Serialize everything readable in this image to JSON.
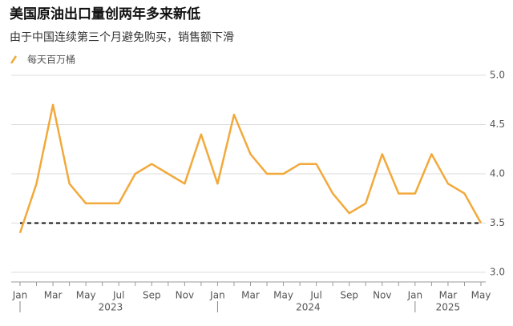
{
  "chart_data": {
    "type": "line",
    "title": "美国原油出口量创两年多来新低",
    "subtitle": "由于中国连续第三个月避免购买，销售额下滑",
    "categories": [
      "Jan",
      null,
      "Mar",
      null,
      "May",
      null,
      "Jul",
      null,
      "Sep",
      null,
      "Nov",
      null,
      "Jan",
      null,
      "Mar",
      null,
      "May",
      null,
      "Jul",
      null,
      "Sep",
      null,
      "Nov",
      null,
      "Jan",
      null,
      "Mar",
      null,
      "May"
    ],
    "years": [
      "2023",
      "2024",
      "2025"
    ],
    "series": [
      {
        "name": "每天百万桶",
        "color": "#f2a93b",
        "values": [
          3.4,
          3.9,
          4.7,
          3.9,
          3.7,
          3.7,
          3.7,
          4.0,
          4.1,
          4.0,
          3.9,
          4.4,
          3.9,
          4.6,
          4.2,
          4.0,
          4.0,
          4.1,
          4.1,
          3.8,
          3.6,
          3.7,
          4.2,
          3.8,
          3.8,
          4.2,
          3.9,
          3.8,
          3.5
        ]
      }
    ],
    "reference_line": 3.5,
    "ylim": [
      3,
      5
    ],
    "yticks": [
      {
        "value": 3,
        "label": "3.0"
      },
      3.5,
      {
        "value": 4,
        "label": "4.0"
      },
      4.5,
      {
        "value": 5,
        "label": "5.0"
      }
    ],
    "grid": true
  }
}
